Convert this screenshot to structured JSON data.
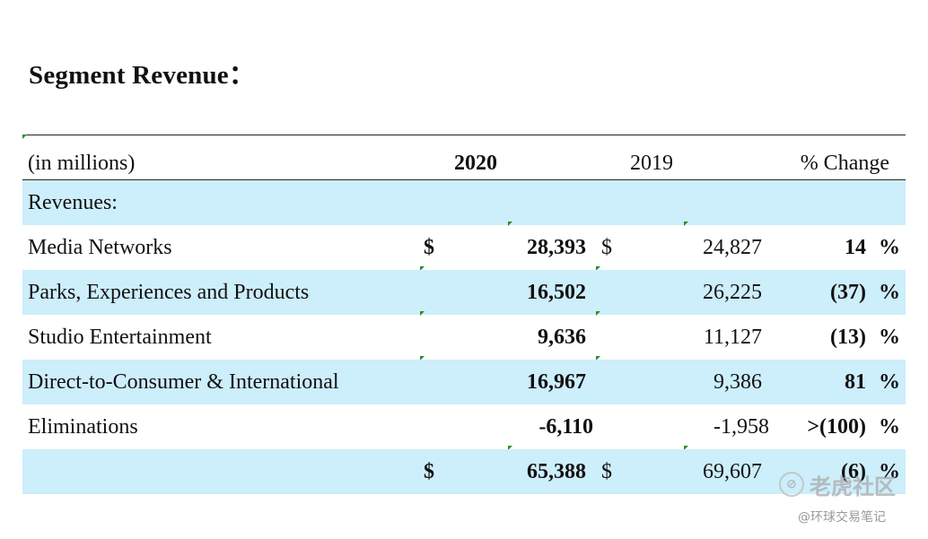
{
  "title": "Segment Revenue：",
  "header": {
    "label": "(in millions)",
    "year_current": "2020",
    "year_prior": "2019",
    "change": "% Change"
  },
  "section_label": "Revenues:",
  "rows": [
    {
      "label": "Media Networks",
      "cur2020": "$",
      "v2020": "28,393",
      "cur2019": "$",
      "v2019": "24,827",
      "change": "14",
      "pct": "%"
    },
    {
      "label": "Parks, Experiences and Products",
      "cur2020": "",
      "v2020": "16,502",
      "cur2019": "",
      "v2019": "26,225",
      "change": "(37)",
      "pct": "%"
    },
    {
      "label": "Studio Entertainment",
      "cur2020": "",
      "v2020": "9,636",
      "cur2019": "",
      "v2019": "11,127",
      "change": "(13)",
      "pct": "%"
    },
    {
      "label": "Direct-to-Consumer & International",
      "cur2020": "",
      "v2020": "16,967",
      "cur2019": "",
      "v2019": "9,386",
      "change": "81",
      "pct": "%"
    },
    {
      "label": "Eliminations",
      "cur2020": "",
      "v2020": "-6,110",
      "cur2019": "",
      "v2019": "-1,958",
      "change": ">(100)",
      "pct": "%"
    }
  ],
  "total": {
    "label": "",
    "cur2020": "$",
    "v2020": "65,388",
    "cur2019": "$",
    "v2019": "69,607",
    "change": "(6)",
    "pct": "%"
  },
  "watermark": {
    "logo_text": "老虎社区",
    "logo_mark": "⊘",
    "sub": "@环球交易笔记"
  },
  "colors": {
    "row_shade": "#cdeefb",
    "excel_tick": "#2e8b2e"
  }
}
